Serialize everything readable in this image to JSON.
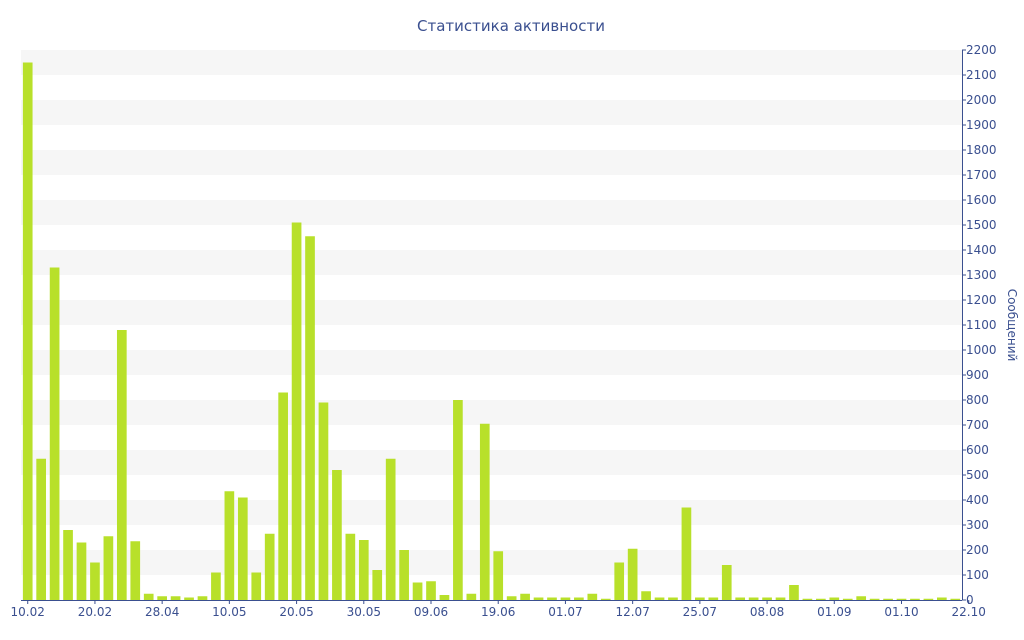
{
  "chart_data": {
    "type": "bar",
    "title": "Статистика активности",
    "ylabel": "Сообщений",
    "xlabel": "",
    "ylim": [
      0,
      2200
    ],
    "y_ticks": [
      0,
      100,
      200,
      300,
      400,
      500,
      600,
      700,
      800,
      900,
      1000,
      1100,
      1200,
      1300,
      1400,
      1500,
      1600,
      1700,
      1800,
      1900,
      2000,
      2100,
      2200
    ],
    "y_axis_side": "right",
    "grid": "horizontal-bands",
    "x_tick_labels": [
      {
        "label": "10.02",
        "index": 0
      },
      {
        "label": "20.02",
        "index": 5
      },
      {
        "label": "28.04",
        "index": 10
      },
      {
        "label": "10.05",
        "index": 15
      },
      {
        "label": "20.05",
        "index": 20
      },
      {
        "label": "30.05",
        "index": 25
      },
      {
        "label": "09.06",
        "index": 30
      },
      {
        "label": "19.06",
        "index": 35
      },
      {
        "label": "01.07",
        "index": 40
      },
      {
        "label": "12.07",
        "index": 45
      },
      {
        "label": "25.07",
        "index": 50
      },
      {
        "label": "08.08",
        "index": 55
      },
      {
        "label": "01.09",
        "index": 60
      },
      {
        "label": "01.10",
        "index": 65
      },
      {
        "label": "22.10",
        "index": 70
      }
    ],
    "series": [
      {
        "color": "#b8e02a",
        "values": [
          2150,
          565,
          1330,
          280,
          230,
          150,
          255,
          1080,
          235,
          25,
          15,
          15,
          10,
          15,
          110,
          435,
          410,
          110,
          265,
          830,
          1510,
          1455,
          790,
          520,
          265,
          240,
          120,
          565,
          200,
          70,
          75,
          20,
          800,
          25,
          705,
          195,
          15,
          25,
          10,
          10,
          10,
          10,
          25,
          5,
          150,
          205,
          35,
          10,
          10,
          370,
          10,
          10,
          140,
          10,
          10,
          10,
          10,
          60,
          5,
          5,
          10,
          5,
          15,
          5,
          5,
          5,
          5,
          5,
          10,
          5
        ]
      }
    ]
  }
}
